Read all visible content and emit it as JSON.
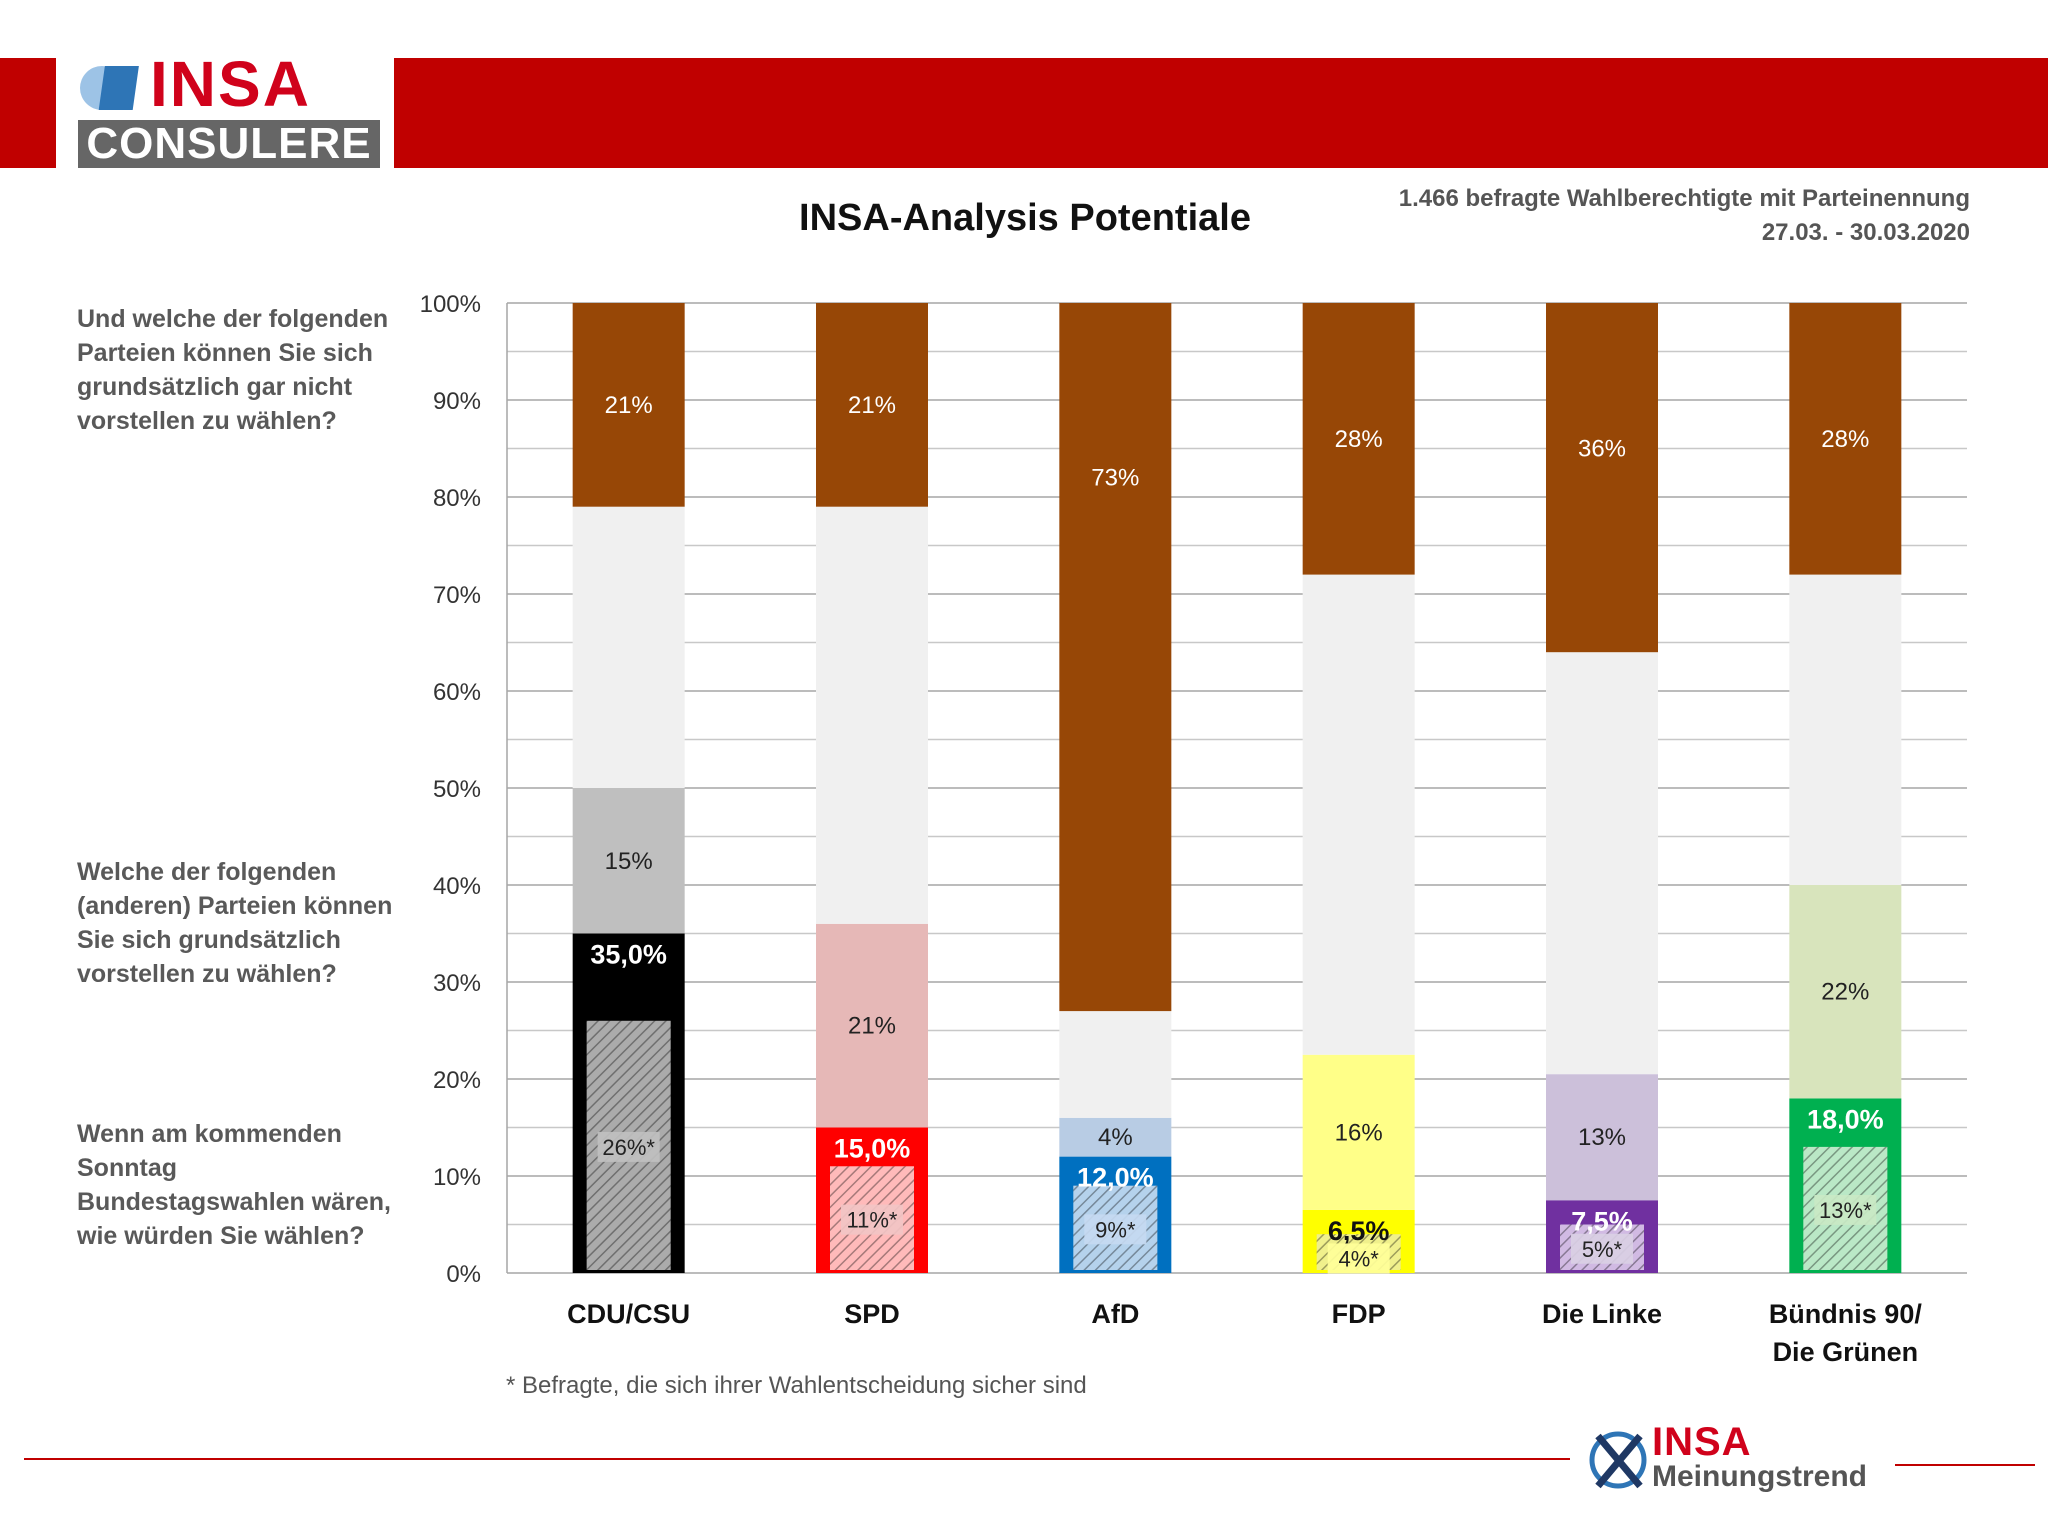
{
  "header": {
    "logo_main": "INSA",
    "logo_sub": "CONSULERE"
  },
  "title": "INSA-Analysis Potentiale",
  "meta": {
    "line1": "1.466 befragte Wahlberechtigte mit Parteinennung",
    "line2": "27.03. - 30.03.2020"
  },
  "questions": {
    "q1": "Und welche der folgenden Parteien können Sie sich grundsätzlich gar nicht vorstellen zu wählen?",
    "q2": "Welche der folgenden (anderen) Parteien können Sie sich grundsätzlich vorstellen zu wählen?",
    "q3": "Wenn am kommenden Sonntag Bundestagswahlen wären, wie würden Sie wählen?"
  },
  "footnote": "* Befragte, die sich ihrer Wahlentscheidung sicher sind",
  "footer": {
    "logo_main": "INSA",
    "logo_sub": "Meinungstrend"
  },
  "colors": {
    "header": "#c00000",
    "never": "#974706",
    "neutral": "#f0f0f0"
  },
  "chart_data": {
    "type": "bar",
    "stacked": true,
    "ylim": [
      0,
      100
    ],
    "y_ticks": [
      "0%",
      "10%",
      "20%",
      "30%",
      "40%",
      "50%",
      "60%",
      "70%",
      "80%",
      "90%",
      "100%"
    ],
    "grid": true,
    "categories": [
      "CDU/CSU",
      "SPD",
      "AfD",
      "FDP",
      "Die Linke",
      "Bündnis 90/ Die Grünen"
    ],
    "category_lines": [
      [
        "CDU/CSU"
      ],
      [
        "SPD"
      ],
      [
        "AfD"
      ],
      [
        "FDP"
      ],
      [
        "Die Linke"
      ],
      [
        "Bündnis 90/",
        "Die Grünen"
      ]
    ],
    "bars": [
      {
        "vote": 35.0,
        "vote_label": "35,0%",
        "certain": 26,
        "certain_label": "26%*",
        "potential": 15,
        "potential_label": "15%",
        "never": 21,
        "never_label": "21%",
        "color_vote": "#000000",
        "color_potential": "#bfbfbf",
        "color_certain": "#444444",
        "vote_text_color": "#ffffff",
        "certain_bg": "#bfbfbf"
      },
      {
        "vote": 15.0,
        "vote_label": "15,0%",
        "certain": 11,
        "certain_label": "11%*",
        "potential": 21,
        "potential_label": "21%",
        "never": 21,
        "never_label": "21%",
        "color_vote": "#ff0000",
        "color_potential": "#e6b8b7",
        "color_certain": "#ff6666",
        "vote_text_color": "#ffffff",
        "certain_bg": "#f2c4c4"
      },
      {
        "vote": 12.0,
        "vote_label": "12,0%",
        "certain": 9,
        "certain_label": "9%*",
        "potential": 4,
        "potential_label": "4%",
        "never": 73,
        "never_label": "73%",
        "color_vote": "#0070c0",
        "color_potential": "#b8cce4",
        "color_certain": "#5b9bd5",
        "vote_text_color": "#ffffff",
        "certain_bg": "#c5d9f1"
      },
      {
        "vote": 6.5,
        "vote_label": "6,5%",
        "certain": 4,
        "certain_label": "4%*",
        "potential": 16,
        "potential_label": "16%",
        "never": 28,
        "never_label": "28%",
        "color_vote": "#ffff00",
        "color_potential": "#ffff88",
        "color_certain": "#dede00",
        "vote_text_color": "#111111",
        "certain_bg": "#ffff99"
      },
      {
        "vote": 7.5,
        "vote_label": "7,5%",
        "certain": 5,
        "certain_label": "5%*",
        "potential": 13,
        "potential_label": "13%",
        "never": 36,
        "never_label": "36%",
        "color_vote": "#7030a0",
        "color_potential": "#ccc0da",
        "color_certain": "#9966c2",
        "vote_text_color": "#ffffff",
        "certain_bg": "#d9cfe4"
      },
      {
        "vote": 18.0,
        "vote_label": "18,0%",
        "certain": 13,
        "certain_label": "13%*",
        "potential": 22,
        "potential_label": "22%",
        "never": 28,
        "never_label": "28%",
        "color_vote": "#00b050",
        "color_potential": "#d8e4bc",
        "color_certain": "#66cc80",
        "vote_text_color": "#ffffff",
        "certain_bg": "#c9e8c4"
      }
    ]
  }
}
